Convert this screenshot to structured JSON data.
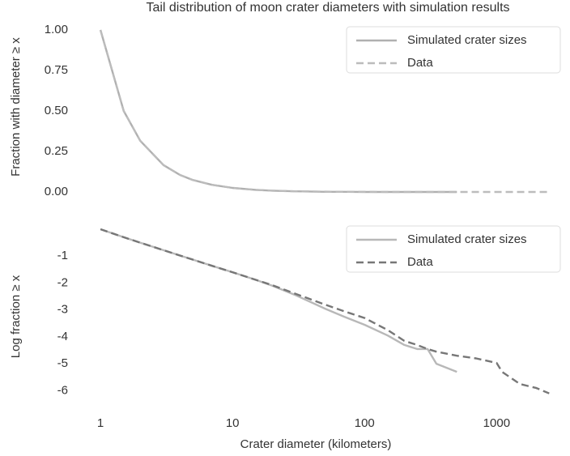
{
  "chart_data": [
    {
      "type": "line",
      "title": "Tail distribution of moon crater diameters with simulation results",
      "ylabel": "Fraction with diameter ≥ x",
      "x": [
        1,
        1.5,
        2,
        3,
        4,
        5,
        7,
        10,
        15,
        20,
        30,
        50,
        70,
        100,
        150,
        200,
        300,
        500,
        700,
        1000,
        1500,
        2000,
        2500
      ],
      "xlim": [
        0.82,
        2950
      ],
      "xscale": "log",
      "ylim": [
        -0.05,
        1.05
      ],
      "yticks": [
        {
          "value": 0,
          "label": "0.00"
        },
        0.25,
        {
          "value": 0.5,
          "label": "0.50"
        },
        0.75,
        {
          "value": 1,
          "label": "1.00"
        }
      ],
      "legend": "upper right",
      "series": [
        {
          "name": "Simulated crater sizes",
          "color": "#b0b0b0",
          "dash": "solid",
          "values": [
            1,
            0.5,
            0.316,
            0.166,
            0.105,
            0.074,
            0.044,
            0.025,
            0.013,
            0.008,
            0.004,
            0.001,
            0.001,
            0,
            0,
            0,
            0,
            0,
            null,
            null,
            null,
            null,
            null
          ]
        },
        {
          "name": "Data",
          "color": "#bcbcbc",
          "dash": "dashed",
          "values": [
            1,
            0.5,
            0.316,
            0.166,
            0.105,
            0.074,
            0.044,
            0.025,
            0.013,
            0.008,
            0.004,
            0.002,
            0.001,
            0.001,
            0,
            0,
            0,
            0,
            0,
            0,
            0,
            0,
            0
          ]
        }
      ]
    },
    {
      "type": "line",
      "xlabel": "Crater diameter (kilometers)",
      "ylabel": "Log fraction ≥ x",
      "x": [
        1,
        1.5,
        2,
        3,
        4,
        5,
        7,
        10,
        15,
        20,
        30,
        50,
        70,
        100,
        150,
        200,
        250,
        300,
        350,
        500,
        700,
        1000,
        1100,
        1500,
        2000,
        2500
      ],
      "xlim": [
        0.82,
        2950
      ],
      "xscale": "log",
      "xticks": [
        1,
        10,
        100,
        1000
      ],
      "ylim": [
        -6.5,
        0.3
      ],
      "yticks": [
        -6,
        -5,
        -4,
        -3,
        -2,
        -1
      ],
      "legend": "upper right",
      "series": [
        {
          "name": "Simulated crater sizes",
          "color": "#b8b8b8",
          "dash": "solid",
          "values": [
            0,
            -0.3,
            -0.5,
            -0.78,
            -0.98,
            -1.13,
            -1.36,
            -1.6,
            -1.88,
            -2.1,
            -2.45,
            -2.95,
            -3.25,
            -3.55,
            -3.95,
            -4.3,
            -4.45,
            -4.45,
            -5.0,
            -5.3,
            null,
            null,
            null,
            null,
            null,
            null
          ]
        },
        {
          "name": "Data",
          "color": "#777777",
          "dash": "dashed",
          "values": [
            0,
            -0.3,
            -0.5,
            -0.78,
            -0.98,
            -1.13,
            -1.36,
            -1.6,
            -1.88,
            -2.08,
            -2.4,
            -2.8,
            -3.05,
            -3.3,
            -3.75,
            -4.15,
            -4.3,
            -4.45,
            -4.55,
            -4.7,
            -4.8,
            -4.97,
            -5.3,
            -5.75,
            -5.9,
            -6.1
          ]
        }
      ]
    }
  ]
}
